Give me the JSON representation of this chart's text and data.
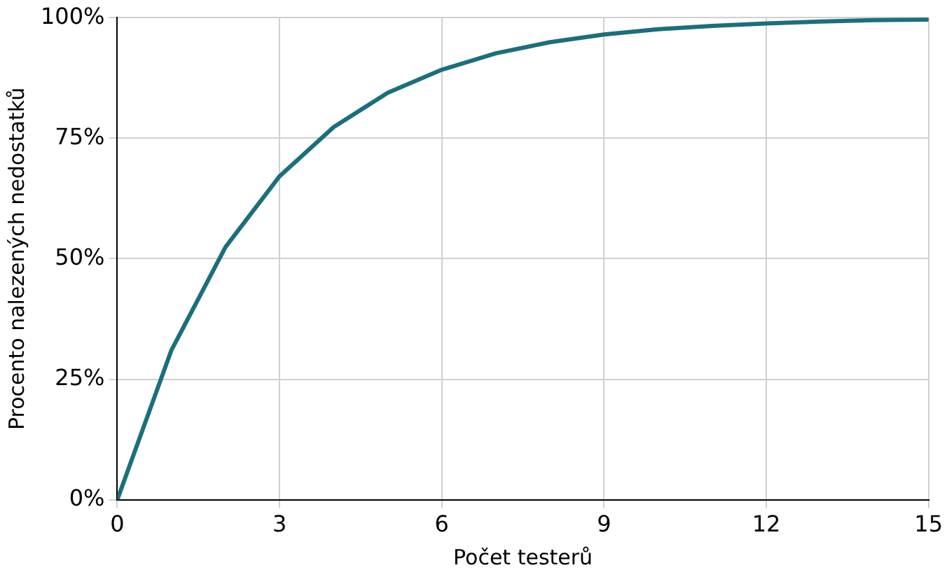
{
  "chart_data": {
    "type": "line",
    "xlabel": "Počet testerů",
    "ylabel": "Procento nalezených nedostatků",
    "x": [
      0,
      1,
      2,
      3,
      4,
      5,
      6,
      7,
      8,
      9,
      10,
      11,
      12,
      13,
      14,
      15
    ],
    "series": [
      {
        "color": "#1b6f7c",
        "values": [
          0,
          31,
          52.4,
          67.1,
          77.3,
          84.4,
          89.2,
          92.6,
          94.9,
          96.5,
          97.6,
          98.3,
          98.8,
          99.2,
          99.5,
          99.6
        ]
      }
    ],
    "xlim": [
      0,
      15
    ],
    "xticks": [
      0,
      3,
      6,
      9,
      12,
      15
    ],
    "ylim": [
      0,
      100
    ],
    "yticks": [
      {
        "value": 0,
        "label": "0%"
      },
      {
        "value": 25,
        "label": "25%"
      },
      {
        "value": 50,
        "label": "50%"
      },
      {
        "value": 75,
        "label": "75%"
      },
      {
        "value": 100,
        "label": "100%"
      }
    ],
    "grid": true,
    "legend": false,
    "marker": "none",
    "line_style": "solid"
  }
}
